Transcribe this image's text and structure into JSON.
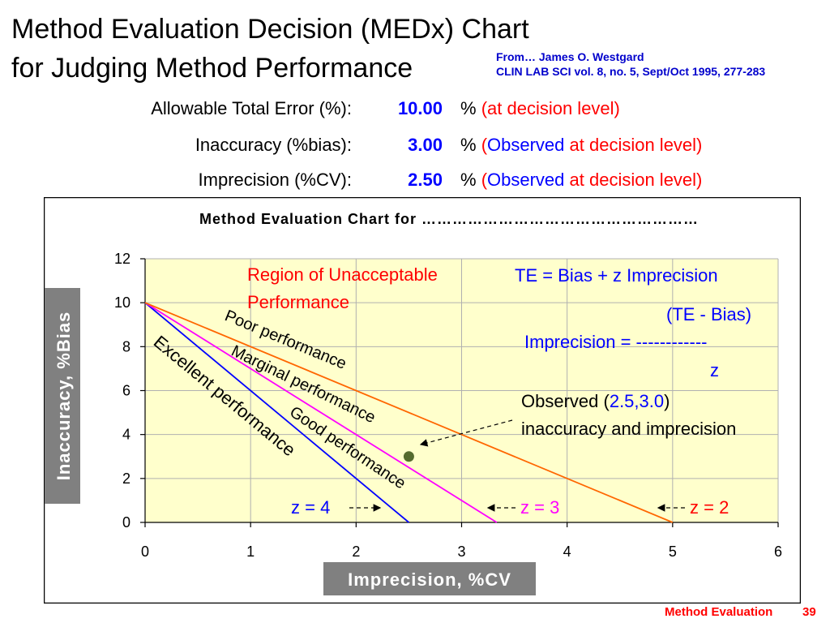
{
  "slide": {
    "title_line1": "Method Evaluation Decision (MEDx) Chart",
    "title_line2": "for Judging Method Performance",
    "citation_line1": "From… James O. Westgard",
    "citation_line2": "CLIN LAB SCI vol. 8, no. 5, Sept/Oct 1995, 277-283",
    "footer_label": "Method Evaluation",
    "page_number": "39"
  },
  "params": [
    {
      "label": "Allowable Total  Error (%):",
      "value": "10.00",
      "unit": "%",
      "note_open": "",
      "note_blue": "",
      "note_red": "(at decision level)"
    },
    {
      "label": "Inaccuracy (%bias):",
      "value": "3.00",
      "unit": "%",
      "note_open": "(",
      "note_blue": "Observed",
      "note_red": " at decision level)"
    },
    {
      "label": "Imprecision (%CV):",
      "value": "2.50",
      "unit": "%",
      "note_open": "(",
      "note_blue": "Observed",
      "note_red": " at decision level)"
    }
  ],
  "chart_data": {
    "type": "line",
    "title": "Method Evaluation Chart for ………………………………………………",
    "xlabel": "Imprecision, %CV",
    "ylabel": "Inaccuracy, %Bias",
    "xlim": [
      0,
      6
    ],
    "ylim": [
      0,
      12
    ],
    "xticks": [
      0,
      1,
      2,
      3,
      4,
      5,
      6
    ],
    "yticks": [
      0,
      2,
      4,
      6,
      8,
      10,
      12
    ],
    "grid": true,
    "plot_background": "#ffffcc",
    "series": [
      {
        "name": "z = 4",
        "color": "#0000ff",
        "points": [
          [
            0,
            10
          ],
          [
            2.5,
            0
          ]
        ]
      },
      {
        "name": "z = 3",
        "color": "#ff00ff",
        "points": [
          [
            0,
            10
          ],
          [
            3.333,
            0
          ]
        ]
      },
      {
        "name": "z = 2",
        "color": "#ff6600",
        "points": [
          [
            0,
            10
          ],
          [
            5,
            0
          ]
        ]
      }
    ],
    "observed_point": {
      "x": 2.5,
      "y": 3.0,
      "color": "#556b2f"
    },
    "region_labels": [
      "Excellent performance",
      "Good performance",
      "Marginal performance",
      "Poor performance"
    ],
    "annotations": {
      "unacceptable": [
        "Region of Unacceptable",
        "Performance"
      ],
      "formula1": "TE = Bias + z Imprecision",
      "formula2_num": "(TE - Bias)",
      "formula2_lhs": "Imprecision = ------------",
      "formula2_den": "z",
      "observed_prefix": "Observed (",
      "observed_values": "2.5,3.0",
      "observed_suffix": ")",
      "observed_line2": "inaccuracy and imprecision",
      "z4": "z = 4",
      "z3": "z = 3",
      "z2": "z = 2"
    }
  }
}
